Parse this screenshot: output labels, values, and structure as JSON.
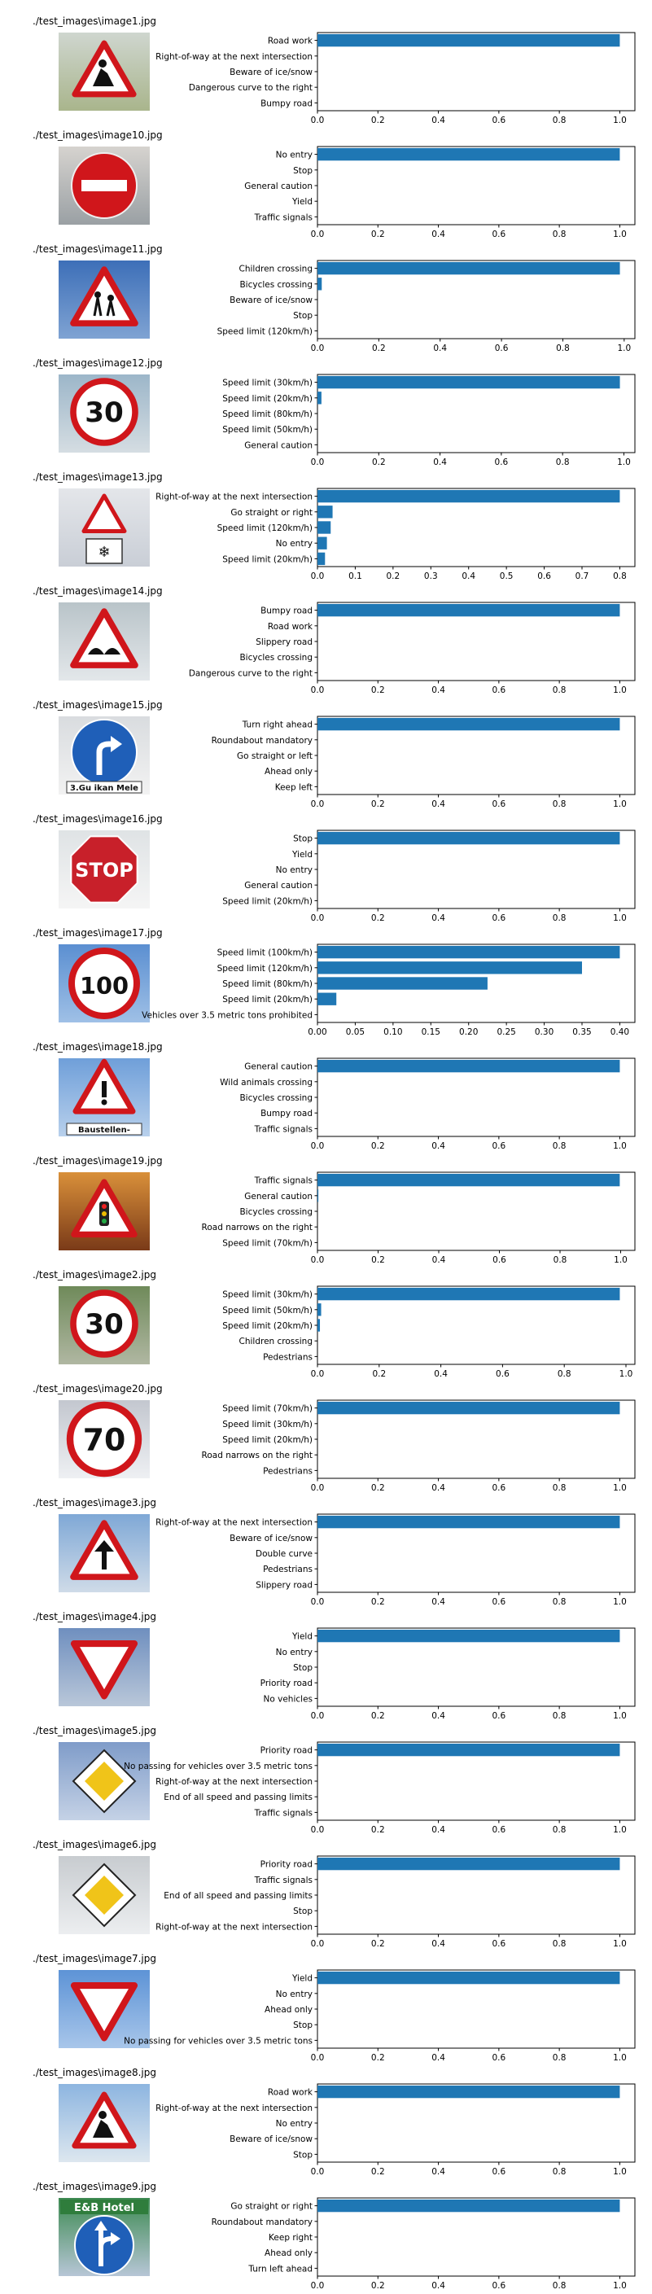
{
  "colors": {
    "bar": "#1f77b4",
    "axis": "#000000",
    "background": "#ffffff"
  },
  "chart_data": [
    {
      "type": "bar",
      "orientation": "horizontal",
      "image_title": "./test_images\\image1.jpg",
      "icon": "road-work-sign",
      "categories": [
        "Road work",
        "Right-of-way at the next intersection",
        "Beware of ice/snow",
        "Dangerous curve to the right",
        "Bumpy road"
      ],
      "values": [
        1.0,
        0.0,
        0.0,
        0.0,
        0.0
      ],
      "xlim": [
        0,
        1.05
      ],
      "xticks": [
        "0.0",
        "0.2",
        "0.4",
        "0.6",
        "0.8",
        "1.0"
      ],
      "grid": false
    },
    {
      "type": "bar",
      "orientation": "horizontal",
      "image_title": "./test_images\\image10.jpg",
      "icon": "no-entry-sign",
      "categories": [
        "No entry",
        "Stop",
        "General caution",
        "Yield",
        "Traffic signals"
      ],
      "values": [
        1.0,
        0.0,
        0.0,
        0.0,
        0.0
      ],
      "xlim": [
        0,
        1.05
      ],
      "xticks": [
        "0.0",
        "0.2",
        "0.4",
        "0.6",
        "0.8",
        "1.0"
      ],
      "grid": false
    },
    {
      "type": "bar",
      "orientation": "horizontal",
      "image_title": "./test_images\\image11.jpg",
      "icon": "children-crossing-sign",
      "categories": [
        "Children crossing",
        "Bicycles crossing",
        "Beware of ice/snow",
        "Stop",
        "Speed limit (120km/h)"
      ],
      "values": [
        0.986,
        0.014,
        0.0,
        0.0,
        0.0
      ],
      "xlim": [
        0,
        1.035
      ],
      "xticks": [
        "0.0",
        "0.2",
        "0.4",
        "0.6",
        "0.8",
        "1.0"
      ],
      "grid": false
    },
    {
      "type": "bar",
      "orientation": "horizontal",
      "image_title": "./test_images\\image12.jpg",
      "icon": "speed-limit-30-sign",
      "categories": [
        "Speed limit (30km/h)",
        "Speed limit (20km/h)",
        "Speed limit (80km/h)",
        "Speed limit (50km/h)",
        "General caution"
      ],
      "values": [
        0.987,
        0.013,
        0.0,
        0.0,
        0.0
      ],
      "xlim": [
        0,
        1.036
      ],
      "xticks": [
        "0.0",
        "0.2",
        "0.4",
        "0.6",
        "0.8",
        "1.0"
      ],
      "grid": false
    },
    {
      "type": "bar",
      "orientation": "horizontal",
      "image_title": "./test_images\\image13.jpg",
      "icon": "right-of-way-snow-sign",
      "categories": [
        "Right-of-way at the next intersection",
        "Go straight or right",
        "Speed limit (120km/h)",
        "No entry",
        "Speed limit (20km/h)"
      ],
      "values": [
        0.8,
        0.04,
        0.035,
        0.025,
        0.02
      ],
      "xlim": [
        0,
        0.84
      ],
      "xticks": [
        "0.0",
        "0.1",
        "0.2",
        "0.3",
        "0.4",
        "0.5",
        "0.6",
        "0.7",
        "0.8"
      ],
      "grid": false
    },
    {
      "type": "bar",
      "orientation": "horizontal",
      "image_title": "./test_images\\image14.jpg",
      "icon": "bumpy-road-sign",
      "categories": [
        "Bumpy road",
        "Road work",
        "Slippery road",
        "Bicycles crossing",
        "Dangerous curve to the right"
      ],
      "values": [
        1.0,
        0.0,
        0.0,
        0.0,
        0.0
      ],
      "xlim": [
        0,
        1.05
      ],
      "xticks": [
        "0.0",
        "0.2",
        "0.4",
        "0.6",
        "0.8",
        "1.0"
      ],
      "grid": false
    },
    {
      "type": "bar",
      "orientation": "horizontal",
      "image_title": "./test_images\\image15.jpg",
      "icon": "turn-right-ahead-sign",
      "caption": "3.Gu  ikan Mele",
      "categories": [
        "Turn right ahead",
        "Roundabout mandatory",
        "Go straight or left",
        "Ahead only",
        "Keep left"
      ],
      "values": [
        1.0,
        0.0,
        0.0,
        0.0,
        0.0
      ],
      "xlim": [
        0,
        1.05
      ],
      "xticks": [
        "0.0",
        "0.2",
        "0.4",
        "0.6",
        "0.8",
        "1.0"
      ],
      "grid": false
    },
    {
      "type": "bar",
      "orientation": "horizontal",
      "image_title": "./test_images\\image16.jpg",
      "icon": "stop-sign",
      "sign_text": "STOP",
      "categories": [
        "Stop",
        "Yield",
        "No entry",
        "General caution",
        "Speed limit (20km/h)"
      ],
      "values": [
        1.0,
        0.0,
        0.0,
        0.0,
        0.0
      ],
      "xlim": [
        0,
        1.05
      ],
      "xticks": [
        "0.0",
        "0.2",
        "0.4",
        "0.6",
        "0.8",
        "1.0"
      ],
      "grid": false
    },
    {
      "type": "bar",
      "orientation": "horizontal",
      "image_title": "./test_images\\image17.jpg",
      "icon": "speed-limit-100-sign",
      "categories": [
        "Speed limit (100km/h)",
        "Speed limit (120km/h)",
        "Speed limit (80km/h)",
        "Speed limit (20km/h)",
        "Vehicles over 3.5 metric tons prohibited"
      ],
      "values": [
        0.4,
        0.35,
        0.225,
        0.025,
        0.0
      ],
      "xlim": [
        0,
        0.42
      ],
      "xticks": [
        "0.00",
        "0.05",
        "0.10",
        "0.15",
        "0.20",
        "0.25",
        "0.30",
        "0.35",
        "0.40"
      ],
      "grid": false
    },
    {
      "type": "bar",
      "orientation": "horizontal",
      "image_title": "./test_images\\image18.jpg",
      "icon": "general-caution-sign",
      "caption": "Baustellen-",
      "categories": [
        "General caution",
        "Wild animals crossing",
        "Bicycles crossing",
        "Bumpy road",
        "Traffic signals"
      ],
      "values": [
        1.0,
        0.0,
        0.0,
        0.0,
        0.0
      ],
      "xlim": [
        0,
        1.05
      ],
      "xticks": [
        "0.0",
        "0.2",
        "0.4",
        "0.6",
        "0.8",
        "1.0"
      ],
      "grid": false
    },
    {
      "type": "bar",
      "orientation": "horizontal",
      "image_title": "./test_images\\image19.jpg",
      "icon": "traffic-signals-sign",
      "categories": [
        "Traffic signals",
        "General caution",
        "Bicycles crossing",
        "Road narrows on the right",
        "Speed limit (70km/h)"
      ],
      "values": [
        0.997,
        0.003,
        0.0,
        0.0,
        0.0
      ],
      "xlim": [
        0,
        1.047
      ],
      "xticks": [
        "0.0",
        "0.2",
        "0.4",
        "0.6",
        "0.8",
        "1.0"
      ],
      "grid": false
    },
    {
      "type": "bar",
      "orientation": "horizontal",
      "image_title": "./test_images\\image2.jpg",
      "icon": "speed-limit-30-sign",
      "categories": [
        "Speed limit (30km/h)",
        "Speed limit (50km/h)",
        "Speed limit (20km/h)",
        "Children crossing",
        "Pedestrians"
      ],
      "values": [
        0.98,
        0.012,
        0.008,
        0.0,
        0.0
      ],
      "xlim": [
        0,
        1.029
      ],
      "xticks": [
        "0.0",
        "0.2",
        "0.4",
        "0.6",
        "0.8",
        "1.0"
      ],
      "grid": false
    },
    {
      "type": "bar",
      "orientation": "horizontal",
      "image_title": "./test_images\\image20.jpg",
      "icon": "speed-limit-70-sign",
      "categories": [
        "Speed limit (70km/h)",
        "Speed limit (30km/h)",
        "Speed limit (20km/h)",
        "Road narrows on the right",
        "Pedestrians"
      ],
      "values": [
        1.0,
        0.0,
        0.0,
        0.0,
        0.0
      ],
      "xlim": [
        0,
        1.05
      ],
      "xticks": [
        "0.0",
        "0.2",
        "0.4",
        "0.6",
        "0.8",
        "1.0"
      ],
      "grid": false
    },
    {
      "type": "bar",
      "orientation": "horizontal",
      "image_title": "./test_images\\image3.jpg",
      "icon": "right-of-way-sign",
      "categories": [
        "Right-of-way at the next intersection",
        "Beware of ice/snow",
        "Double curve",
        "Pedestrians",
        "Slippery road"
      ],
      "values": [
        1.0,
        0.0,
        0.0,
        0.0,
        0.0
      ],
      "xlim": [
        0,
        1.05
      ],
      "xticks": [
        "0.0",
        "0.2",
        "0.4",
        "0.6",
        "0.8",
        "1.0"
      ],
      "grid": false
    },
    {
      "type": "bar",
      "orientation": "horizontal",
      "image_title": "./test_images\\image4.jpg",
      "icon": "yield-sign",
      "categories": [
        "Yield",
        "No entry",
        "Stop",
        "Priority road",
        "No vehicles"
      ],
      "values": [
        1.0,
        0.0,
        0.0,
        0.0,
        0.0
      ],
      "xlim": [
        0,
        1.05
      ],
      "xticks": [
        "0.0",
        "0.2",
        "0.4",
        "0.6",
        "0.8",
        "1.0"
      ],
      "grid": false
    },
    {
      "type": "bar",
      "orientation": "horizontal",
      "image_title": "./test_images\\image5.jpg",
      "icon": "priority-road-sign",
      "categories": [
        "Priority road",
        "No passing for vehicles over 3.5 metric tons",
        "Right-of-way at the next intersection",
        "End of all speed and passing limits",
        "Traffic signals"
      ],
      "values": [
        1.0,
        0.0,
        0.0,
        0.0,
        0.0
      ],
      "xlim": [
        0,
        1.05
      ],
      "xticks": [
        "0.0",
        "0.2",
        "0.4",
        "0.6",
        "0.8",
        "1.0"
      ],
      "grid": false
    },
    {
      "type": "bar",
      "orientation": "horizontal",
      "image_title": "./test_images\\image6.jpg",
      "icon": "priority-road-sign",
      "categories": [
        "Priority road",
        "Traffic signals",
        "End of all speed and passing limits",
        "Stop",
        "Right-of-way at the next intersection"
      ],
      "values": [
        1.0,
        0.0,
        0.0,
        0.0,
        0.0
      ],
      "xlim": [
        0,
        1.05
      ],
      "xticks": [
        "0.0",
        "0.2",
        "0.4",
        "0.6",
        "0.8",
        "1.0"
      ],
      "grid": false
    },
    {
      "type": "bar",
      "orientation": "horizontal",
      "image_title": "./test_images\\image7.jpg",
      "icon": "yield-sign",
      "categories": [
        "Yield",
        "No entry",
        "Ahead only",
        "Stop",
        "No passing for vehicles over 3.5 metric tons"
      ],
      "values": [
        1.0,
        0.0,
        0.0,
        0.0,
        0.0
      ],
      "xlim": [
        0,
        1.05
      ],
      "xticks": [
        "0.0",
        "0.2",
        "0.4",
        "0.6",
        "0.8",
        "1.0"
      ],
      "grid": false
    },
    {
      "type": "bar",
      "orientation": "horizontal",
      "image_title": "./test_images\\image8.jpg",
      "icon": "road-work-sign",
      "categories": [
        "Road work",
        "Right-of-way at the next intersection",
        "No entry",
        "Beware of ice/snow",
        "Stop"
      ],
      "values": [
        1.0,
        0.0,
        0.0,
        0.0,
        0.0
      ],
      "xlim": [
        0,
        1.05
      ],
      "xticks": [
        "0.0",
        "0.2",
        "0.4",
        "0.6",
        "0.8",
        "1.0"
      ],
      "grid": false
    },
    {
      "type": "bar",
      "orientation": "horizontal",
      "image_title": "./test_images\\image9.jpg",
      "icon": "go-straight-or-right-sign",
      "caption": "E&B Hotel",
      "categories": [
        "Go straight or right",
        "Roundabout mandatory",
        "Keep right",
        "Ahead only",
        "Turn left ahead"
      ],
      "values": [
        1.0,
        0.0,
        0.0,
        0.0,
        0.0
      ],
      "xlim": [
        0,
        1.05
      ],
      "xticks": [
        "0.0",
        "0.2",
        "0.4",
        "0.6",
        "0.8",
        "1.0"
      ],
      "grid": false
    }
  ]
}
